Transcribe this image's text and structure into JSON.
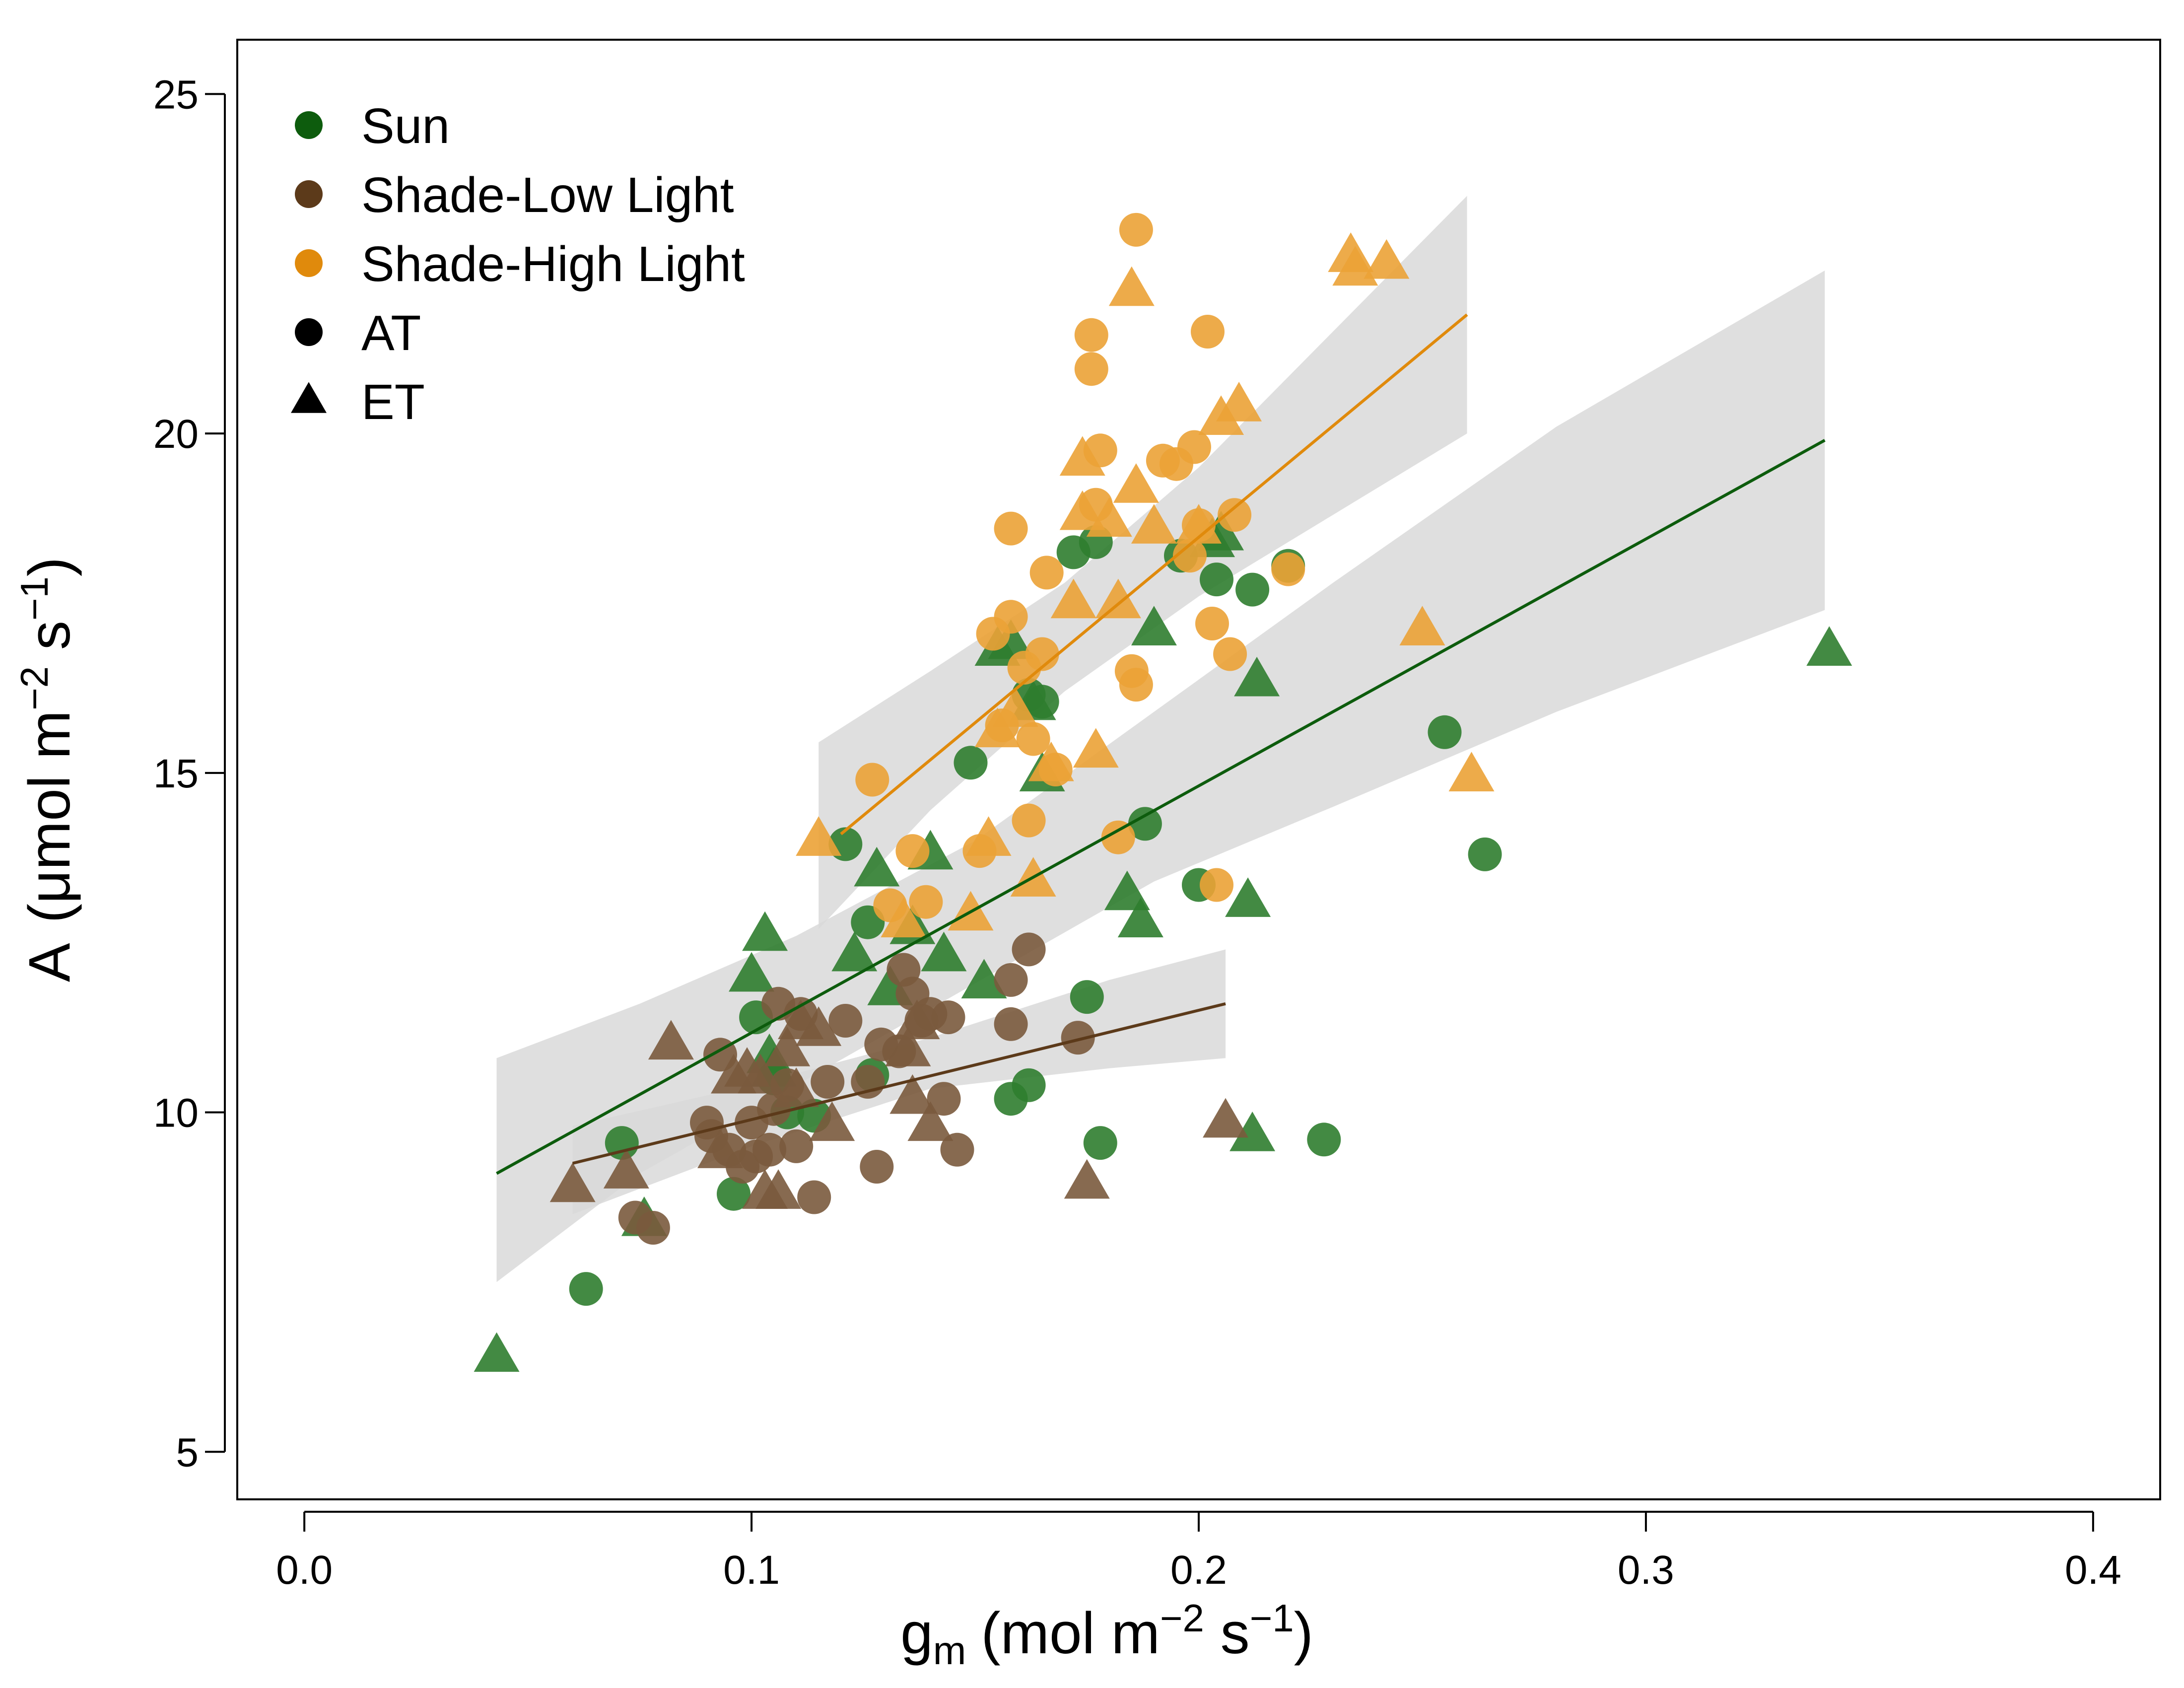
{
  "chart_data": {
    "type": "scatter",
    "xlim": [
      -0.015,
      0.415
    ],
    "ylim": [
      4.3,
      25.8
    ],
    "x_ticks": [
      0.0,
      0.1,
      0.2,
      0.3,
      0.4
    ],
    "x_tick_labels": [
      "0.0",
      "0.1",
      "0.2",
      "0.3",
      "0.4"
    ],
    "y_ticks": [
      5,
      10,
      15,
      20,
      25
    ],
    "y_tick_labels": [
      "5",
      "10",
      "15",
      "20",
      "25"
    ],
    "xlabel": {
      "main": "g",
      "sub": "m",
      "unit_open": "(mol m",
      "exp1": "−2",
      "mid": " s",
      "exp2": "−1",
      "close": ")"
    },
    "ylabel": {
      "main": "A",
      "unit_open": "(μmol m",
      "exp1": "−2",
      "mid": " s",
      "exp2": "−1",
      "close": ")"
    },
    "legend_position": "top-left",
    "legend": [
      {
        "label": "Sun",
        "shape": "circle",
        "color": "#0d5c0d"
      },
      {
        "label": "Shade-Low Light",
        "shape": "circle",
        "color": "#5c3a1a"
      },
      {
        "label": "Shade-High Light",
        "shape": "circle",
        "color": "#e08a0c"
      },
      {
        "label": "AT",
        "shape": "circle",
        "color": "#000000"
      },
      {
        "label": "ET",
        "shape": "triangle",
        "color": "#000000"
      }
    ],
    "series": [
      {
        "name": "Sun",
        "point_color": "#2f7d2f",
        "line_color": "#0d5c0d",
        "fit": {
          "x": [
            0.043,
            0.34
          ],
          "y": [
            9.1,
            19.9
          ]
        },
        "ci_upper": [
          [
            0.043,
            10.8
          ],
          [
            0.075,
            11.6
          ],
          [
            0.11,
            12.6
          ],
          [
            0.15,
            14.0
          ],
          [
            0.19,
            15.9
          ],
          [
            0.23,
            17.8
          ],
          [
            0.28,
            20.1
          ],
          [
            0.34,
            22.4
          ]
        ],
        "ci_lower": [
          [
            0.043,
            7.5
          ],
          [
            0.075,
            9.1
          ],
          [
            0.11,
            10.4
          ],
          [
            0.15,
            11.9
          ],
          [
            0.19,
            13.4
          ],
          [
            0.23,
            14.5
          ],
          [
            0.28,
            15.9
          ],
          [
            0.34,
            17.4
          ]
        ],
        "AT": [
          [
            0.063,
            7.4
          ],
          [
            0.071,
            9.55
          ],
          [
            0.096,
            8.8
          ],
          [
            0.101,
            11.4
          ],
          [
            0.105,
            10.5
          ],
          [
            0.108,
            10.0
          ],
          [
            0.114,
            9.95
          ],
          [
            0.121,
            13.95
          ],
          [
            0.126,
            12.8
          ],
          [
            0.127,
            10.55
          ],
          [
            0.149,
            15.15
          ],
          [
            0.158,
            10.2
          ],
          [
            0.162,
            10.4
          ],
          [
            0.162,
            16.15
          ],
          [
            0.165,
            16.05
          ],
          [
            0.172,
            18.25
          ],
          [
            0.175,
            11.7
          ],
          [
            0.177,
            18.4
          ],
          [
            0.178,
            9.55
          ],
          [
            0.188,
            14.25
          ],
          [
            0.196,
            18.2
          ],
          [
            0.2,
            13.35
          ],
          [
            0.204,
            17.85
          ],
          [
            0.212,
            17.7
          ],
          [
            0.22,
            18.05
          ],
          [
            0.228,
            9.6
          ],
          [
            0.255,
            15.6
          ],
          [
            0.264,
            13.8
          ]
        ],
        "ET": [
          [
            0.043,
            6.4
          ],
          [
            0.076,
            8.4
          ],
          [
            0.1,
            12.0
          ],
          [
            0.103,
            12.6
          ],
          [
            0.104,
            10.8
          ],
          [
            0.105,
            10.6
          ],
          [
            0.123,
            12.3
          ],
          [
            0.128,
            13.55
          ],
          [
            0.131,
            11.8
          ],
          [
            0.136,
            12.7
          ],
          [
            0.14,
            13.8
          ],
          [
            0.143,
            12.3
          ],
          [
            0.152,
            11.9
          ],
          [
            0.155,
            16.8
          ],
          [
            0.158,
            16.9
          ],
          [
            0.163,
            16.0
          ],
          [
            0.165,
            14.95
          ],
          [
            0.184,
            13.2
          ],
          [
            0.187,
            12.8
          ],
          [
            0.19,
            17.1
          ],
          [
            0.203,
            18.4
          ],
          [
            0.205,
            18.5
          ],
          [
            0.211,
            13.1
          ],
          [
            0.212,
            9.65
          ],
          [
            0.213,
            16.35
          ],
          [
            0.341,
            16.8
          ]
        ]
      },
      {
        "name": "Shade-Low Light",
        "point_color": "#7a5a3d",
        "line_color": "#5c3a1a",
        "fit": {
          "x": [
            0.06,
            0.206
          ],
          "y": [
            9.25,
            11.6
          ]
        },
        "ci_upper": [
          [
            0.06,
            9.8
          ],
          [
            0.1,
            10.4
          ],
          [
            0.14,
            11.1
          ],
          [
            0.18,
            11.95
          ],
          [
            0.206,
            12.4
          ]
        ],
        "ci_lower": [
          [
            0.06,
            8.5
          ],
          [
            0.1,
            9.5
          ],
          [
            0.14,
            10.35
          ],
          [
            0.18,
            10.65
          ],
          [
            0.206,
            10.8
          ]
        ],
        "AT": [
          [
            0.074,
            8.45
          ],
          [
            0.078,
            8.3
          ],
          [
            0.09,
            9.85
          ],
          [
            0.091,
            9.65
          ],
          [
            0.093,
            10.85
          ],
          [
            0.095,
            9.45
          ],
          [
            0.098,
            9.2
          ],
          [
            0.1,
            9.85
          ],
          [
            0.101,
            9.35
          ],
          [
            0.104,
            9.45
          ],
          [
            0.105,
            10.05
          ],
          [
            0.106,
            11.6
          ],
          [
            0.108,
            10.4
          ],
          [
            0.11,
            9.5
          ],
          [
            0.111,
            11.45
          ],
          [
            0.114,
            8.75
          ],
          [
            0.117,
            10.45
          ],
          [
            0.121,
            11.35
          ],
          [
            0.126,
            10.45
          ],
          [
            0.128,
            9.2
          ],
          [
            0.129,
            11.0
          ],
          [
            0.133,
            10.9
          ],
          [
            0.134,
            12.1
          ],
          [
            0.136,
            11.75
          ],
          [
            0.138,
            11.35
          ],
          [
            0.14,
            11.45
          ],
          [
            0.143,
            10.2
          ],
          [
            0.144,
            11.4
          ],
          [
            0.146,
            9.45
          ],
          [
            0.158,
            11.95
          ],
          [
            0.158,
            11.3
          ],
          [
            0.162,
            12.4
          ],
          [
            0.173,
            11.1
          ]
        ],
        "ET": [
          [
            0.06,
            8.9
          ],
          [
            0.072,
            9.1
          ],
          [
            0.082,
            11.0
          ],
          [
            0.093,
            9.4
          ],
          [
            0.096,
            10.5
          ],
          [
            0.099,
            10.6
          ],
          [
            0.102,
            10.5
          ],
          [
            0.103,
            8.8
          ],
          [
            0.106,
            8.8
          ],
          [
            0.108,
            10.9
          ],
          [
            0.11,
            10.3
          ],
          [
            0.111,
            11.3
          ],
          [
            0.115,
            11.2
          ],
          [
            0.118,
            9.8
          ],
          [
            0.135,
            10.9
          ],
          [
            0.136,
            10.2
          ],
          [
            0.137,
            11.3
          ],
          [
            0.14,
            9.8
          ],
          [
            0.175,
            8.95
          ],
          [
            0.206,
            9.85
          ]
        ]
      },
      {
        "name": "Shade-High Light",
        "point_color": "#eba236",
        "line_color": "#e08a0c",
        "fit": {
          "x": [
            0.12,
            0.26
          ],
          "y": [
            14.1,
            21.75
          ]
        },
        "ci_upper": [
          [
            0.115,
            15.45
          ],
          [
            0.14,
            16.5
          ],
          [
            0.17,
            17.8
          ],
          [
            0.2,
            19.5
          ],
          [
            0.23,
            21.5
          ],
          [
            0.26,
            23.5
          ]
        ],
        "ci_lower": [
          [
            0.115,
            12.7
          ],
          [
            0.14,
            14.45
          ],
          [
            0.17,
            16.2
          ],
          [
            0.2,
            17.6
          ],
          [
            0.23,
            18.8
          ],
          [
            0.26,
            20.0
          ]
        ],
        "AT": [
          [
            0.127,
            14.9
          ],
          [
            0.131,
            13.05
          ],
          [
            0.136,
            13.85
          ],
          [
            0.139,
            13.1
          ],
          [
            0.151,
            13.85
          ],
          [
            0.154,
            17.05
          ],
          [
            0.156,
            15.7
          ],
          [
            0.158,
            18.6
          ],
          [
            0.158,
            17.3
          ],
          [
            0.161,
            16.55
          ],
          [
            0.162,
            14.3
          ],
          [
            0.163,
            15.5
          ],
          [
            0.165,
            16.75
          ],
          [
            0.166,
            17.95
          ],
          [
            0.168,
            15.05
          ],
          [
            0.176,
            21.45
          ],
          [
            0.176,
            20.95
          ],
          [
            0.177,
            18.95
          ],
          [
            0.178,
            19.75
          ],
          [
            0.182,
            14.05
          ],
          [
            0.185,
            16.5
          ],
          [
            0.186,
            23.0
          ],
          [
            0.186,
            16.3
          ],
          [
            0.192,
            19.6
          ],
          [
            0.195,
            19.55
          ],
          [
            0.198,
            18.2
          ],
          [
            0.199,
            19.8
          ],
          [
            0.2,
            18.65
          ],
          [
            0.202,
            21.5
          ],
          [
            0.203,
            17.2
          ],
          [
            0.204,
            13.35
          ],
          [
            0.207,
            16.75
          ],
          [
            0.208,
            18.8
          ],
          [
            0.22,
            18.0
          ]
        ],
        "ET": [
          [
            0.115,
            14.0
          ],
          [
            0.134,
            12.8
          ],
          [
            0.149,
            12.9
          ],
          [
            0.153,
            14.0
          ],
          [
            0.155,
            15.6
          ],
          [
            0.159,
            15.9
          ],
          [
            0.163,
            13.4
          ],
          [
            0.167,
            15.1
          ],
          [
            0.172,
            17.5
          ],
          [
            0.174,
            19.6
          ],
          [
            0.174,
            18.8
          ],
          [
            0.177,
            15.3
          ],
          [
            0.18,
            18.7
          ],
          [
            0.182,
            17.5
          ],
          [
            0.185,
            22.1
          ],
          [
            0.186,
            19.2
          ],
          [
            0.19,
            18.6
          ],
          [
            0.2,
            18.6
          ],
          [
            0.205,
            20.2
          ],
          [
            0.209,
            20.4
          ],
          [
            0.234,
            22.6
          ],
          [
            0.235,
            22.4
          ],
          [
            0.242,
            22.5
          ],
          [
            0.25,
            17.1
          ],
          [
            0.261,
            14.95
          ]
        ]
      }
    ]
  }
}
